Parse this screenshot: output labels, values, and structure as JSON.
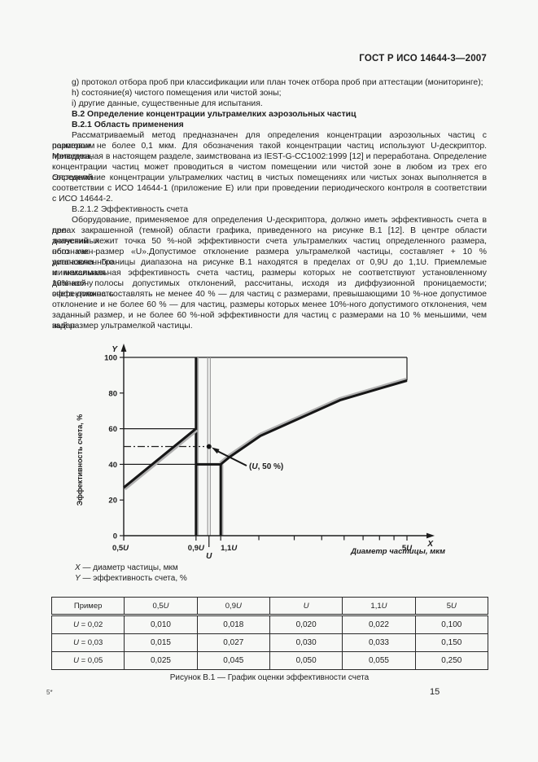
{
  "header": {
    "title": "ГОСТ Р ИСО 14644-3—2007"
  },
  "body": {
    "blocks": [
      {
        "cls": "plain",
        "lines": [
          "g) протокол отбора проб при классификации или план точек отбора проб при аттестации (мониторинге);",
          "h) состояние(я) чистого помещения или чистой зоны;",
          "i) другие данные, существенные для испытания."
        ]
      },
      {
        "cls": "bold",
        "lines": [
          "В.2 Определение концентрации ультрамелких аэрозольных частиц"
        ]
      },
      {
        "cls": "bold",
        "lines": [
          "В.2.1 Область применения"
        ]
      },
      {
        "cls": "just",
        "lines": [
          "Рассматриваемый метод предназначен для определения концентрации аэрозольных частиц с пороговым",
          "размером не более 0,1 мкм. Для обозначения такой концентрации частиц используют U-дескриптор. Методика,",
          "приведенная в настоящем разделе, заимствована из IEST-G-CC1002:1999 [12] и переработана. Определение",
          "концентрации частиц может проводиться в чистом помещении или чистой зоне в любом из трех его состояний.",
          "Определение концентрации ультрамелких частиц в чистых помещениях или чистых зонах выполняется в",
          "соответствии с ИСО 14644-1 (приложение Е) или при проведении периодического контроля в соответствии",
          "с ИСО 14644-2."
        ]
      },
      {
        "cls": "plain",
        "lines": [
          "В.2.1.2 Эффективность счета"
        ]
      },
      {
        "cls": "just",
        "lines": [
          "Оборудование, применяемое для определения U-дескриптора, должно иметь эффективность счета в пре-",
          "делах закрашенной (темной) области графика, приведенного на рисунке В.1 [12]. В центре области допустимых",
          "значений лежит точка 50 %-ной эффективности счета ультрамелких частиц определенного размера, обозначен-",
          "ного как размер «U».Допустимое отклонение размера ультрамелкой частицы, составляет + 10 % установленного",
          "диапазона. Границы диапазона на рисунке В.1 находятся в пределах от 0,9U до 1,1U. Приемлемые минимальная",
          "и максимальная эффективность счета частиц, размеры которых не соответствуют установленному диапазону",
          "10%-ной полосы допустимых отклонений, рассчитаны, исходя из диффузионной проницаемости; эффективность",
          "счета должна составлять не менее 40 % — для частиц с размерами, превышающими 10 %-ное допустимое",
          "отклонение и не более 60 % — для частиц, размеры которых менее 10%-ного допустимого отклонения, чем",
          "заданный размер, и не более 60 %-ной эффективности для частиц с размерами на 10 % меньшими, чем задан-",
          "ный размер ультрамелкой частицы."
        ]
      }
    ]
  },
  "chart_data": {
    "type": "line",
    "x_scale": "log",
    "xlim_u": [
      0.5,
      5
    ],
    "ylim": [
      0,
      100
    ],
    "xlabel": "Диаметр частицы, мкм",
    "ylabel": "Эффективность счета, %",
    "x_axis_symbol": "X",
    "y_axis_symbol": "Y",
    "y_ticks": [
      0,
      20,
      40,
      60,
      80,
      100
    ],
    "x_tick_labels": [
      {
        "u": 0.5,
        "label": "0,5U"
      },
      {
        "u": 0.9,
        "label": "0,9U"
      },
      {
        "u": 1.1,
        "label": "1,1U"
      },
      {
        "u": 5,
        "label": "5U"
      }
    ],
    "x_tick_below": {
      "u": 1.0,
      "label": "U"
    },
    "x_minor_ticks_u": [
      1.5,
      2,
      2.5,
      3,
      3.5,
      4,
      4.5
    ],
    "series": [
      {
        "name": "lower-size-boundary-line",
        "points": [
          [
            0.5,
            27
          ],
          [
            0.9,
            60
          ]
        ]
      },
      {
        "name": "counting-efficiency-curve",
        "points": [
          [
            1.1,
            40
          ],
          [
            1.18,
            44
          ],
          [
            1.52,
            56
          ],
          [
            2.1,
            66
          ],
          [
            2.9,
            76
          ],
          [
            4.1,
            83
          ],
          [
            5,
            87
          ]
        ]
      }
    ],
    "guides": {
      "vertical_thick": [
        {
          "u": 0.9,
          "from": 0,
          "to": 100
        },
        {
          "u": 1.1,
          "from": 0,
          "to": 40
        }
      ],
      "vertical_gray_double": {
        "u": 1.0,
        "from": 0,
        "to": 100
      },
      "horizontal_thin": [
        {
          "pct": 60,
          "from_u": 0.5,
          "to_u": 0.9
        },
        {
          "pct": 40,
          "from_u": 0.5,
          "to_u": 1.1
        }
      ],
      "horizontal_thick": {
        "pct": 40,
        "from_u": 0.9,
        "to_u": 1.1
      },
      "horizontal_dashdot": {
        "pct": 50,
        "from_u": 0.5,
        "to_u": 1.0
      },
      "frame_top_pct": 100,
      "frame_right_u": 5
    },
    "marked_point": {
      "u": 1.0,
      "pct": 50,
      "label": "(U, 50 %)"
    }
  },
  "legend": [
    {
      "symbol": "X",
      "text": "— диаметр частицы, мкм"
    },
    {
      "symbol": "Y",
      "text": "— эффективность счета, %"
    }
  ],
  "table": {
    "headers": [
      "Пример",
      "0,5U",
      "0,9U",
      "U",
      "1,1U",
      "5U"
    ],
    "rows": [
      [
        "U = 0,02",
        "0,010",
        "0,018",
        "0,020",
        "0,022",
        "0,100"
      ],
      [
        "U = 0,03",
        "0,015",
        "0,027",
        "0,030",
        "0,033",
        "0,150"
      ],
      [
        "U = 0,05",
        "0,025",
        "0,045",
        "0,050",
        "0,055",
        "0,250"
      ]
    ]
  },
  "caption": "Рисунок В.1 — График оценки эффективности счета",
  "footer": {
    "signature": "5*",
    "page_number": "15"
  }
}
